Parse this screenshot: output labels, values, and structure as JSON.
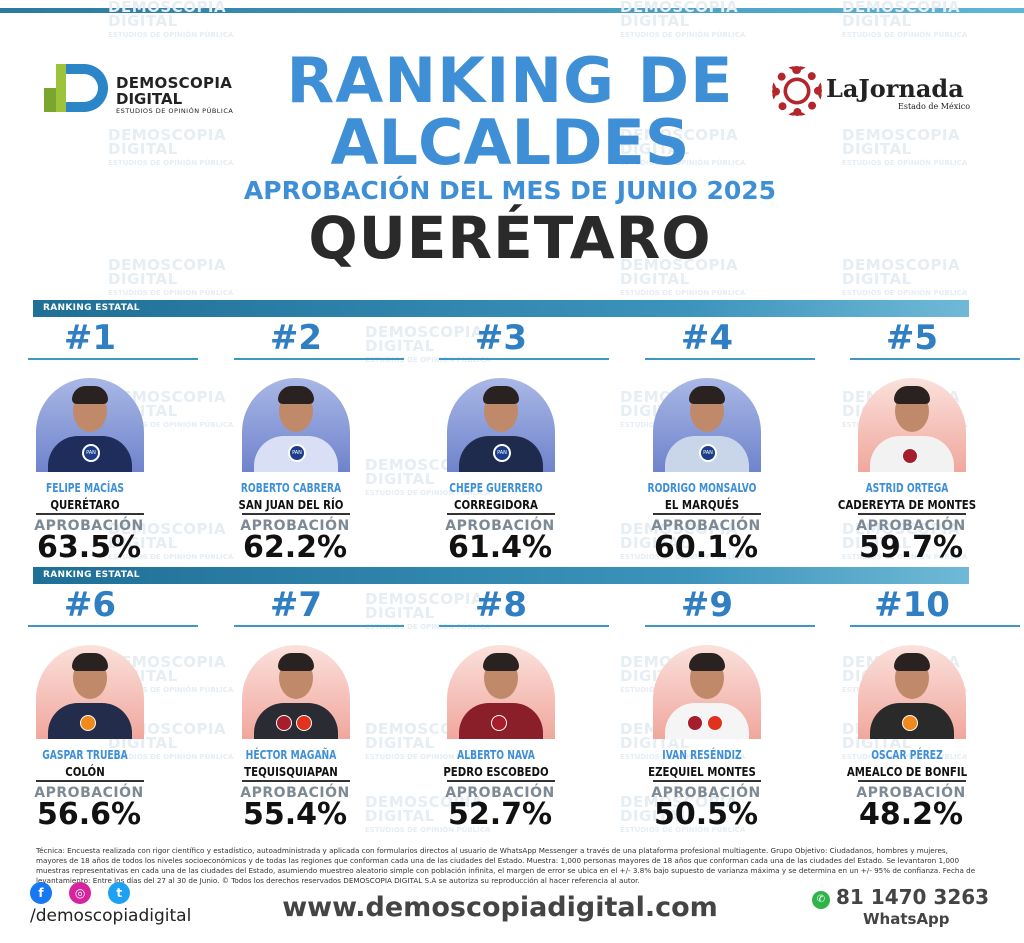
{
  "header": {
    "logo": {
      "line1": "DEMOSCOPIA",
      "line2": "DIGITAL",
      "line3": "ESTUDIOS DE OPINIÓN PÚBLICA"
    },
    "partner": {
      "name": "LaJornada",
      "sub": "Estado de México"
    },
    "title_line1": "RANKING DE",
    "title_line2": "ALCALDES",
    "subtitle": "APROBACIÓN DEL MES DE JUNIO 2025",
    "state": "QUERÉTARO"
  },
  "watermark": {
    "line1": "DEMOSCOPIA",
    "line2": "DIGITAL",
    "line3": "ESTUDIOS DE OPINIÓN PÚBLICA"
  },
  "section_label": "RANKING ESTATAL",
  "approval_label": "APROBACIÓN",
  "mayors": [
    {
      "rank": "#1",
      "name": "FELIPE MACÍAS",
      "city": "QUERÉTARO",
      "approval": "63.5%",
      "party": "PAN"
    },
    {
      "rank": "#2",
      "name": "ROBERTO CABRERA",
      "city": "SAN JUAN DEL RÍO",
      "approval": "62.2%",
      "party": "PAN"
    },
    {
      "rank": "#3",
      "name": "CHEPE GUERRERO",
      "city": "CORREGIDORA",
      "approval": "61.4%",
      "party": "PAN"
    },
    {
      "rank": "#4",
      "name": "RODRIGO MONSALVO",
      "city": "EL MARQUÉS",
      "approval": "60.1%",
      "party": "PAN"
    },
    {
      "rank": "#5",
      "name": "ASTRID ORTEGA",
      "city": "CADEREYTA DE MONTES",
      "approval": "59.7%",
      "party": "MORENA"
    },
    {
      "rank": "#6",
      "name": "GASPAR TRUEBA",
      "city": "COLÓN",
      "approval": "56.6%",
      "party": "MC"
    },
    {
      "rank": "#7",
      "name": "HÉCTOR MAGAÑA",
      "city": "TEQUISQUIAPAN",
      "approval": "55.4%",
      "party": "MORENA-PT"
    },
    {
      "rank": "#8",
      "name": "ALBERTO NAVA",
      "city": "PEDRO ESCOBEDO",
      "approval": "52.7%",
      "party": "MORENA"
    },
    {
      "rank": "#9",
      "name": "IVAN RESÉNDIZ",
      "city": "EZEQUIEL MONTES",
      "approval": "50.5%",
      "party": "MORENA-PT"
    },
    {
      "rank": "#10",
      "name": "OSCAR PÉREZ",
      "city": "AMEALCO DE BONFIL",
      "approval": "48.2%",
      "party": "MC"
    }
  ],
  "footer": {
    "tecnica": "Técnica: Encuesta realizada con rigor científico y estadístico, autoadministrada y aplicada con formularios directos al usuario de WhatsApp Messenger a través de una plataforma profesional multiagente. Grupo Objetivo: Ciudadanos, hombres y mujeres, mayores de 18 años de todos los niveles socioeconómicos y de todas las regiones que conforman cada una de las ciudades del Estado. Muestra: 1,000 personas mayores de 18 años que conforman cada una de las ciudades del Estado. Se levantaron 1,000 muestras representativas en cada una de las ciudades del Estado, asumiendo muestreo aleatorio simple con población infinita, el margen de error se ubica en el +/- 3.8% bajo supuesto de varianza máxima y se determina en un +/- 95% de confianza. Fecha de levantamiento: Entre los días del 27 al 30 de Junio. © Todos los derechos reservados DEMOSCOPIA DIGITAL S.A se autoriza su reproducción al hacer referencia al autor.",
    "handle": "/demoscopiadigital",
    "website": "www.demoscopiadigital.com",
    "phone": "81 1470 3263",
    "phone_label": "WhatsApp"
  }
}
